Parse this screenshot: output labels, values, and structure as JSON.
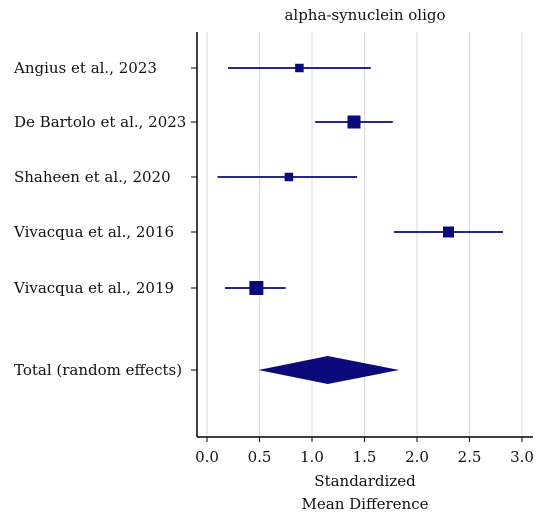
{
  "chart_data": {
    "type": "forest",
    "title": "alpha-synuclein oligo",
    "xlabel_lines": [
      "Standardized",
      "Mean Difference"
    ],
    "xlim": [
      -0.1,
      3.1
    ],
    "xticks": [
      0.0,
      0.5,
      1.0,
      1.5,
      2.0,
      2.5,
      3.0
    ],
    "xtick_labels": [
      "0.0",
      "0.5",
      "1.0",
      "1.5",
      "2.0",
      "2.5",
      "3.0"
    ],
    "vertical_grid": true,
    "color": "#0a0a7a",
    "studies": [
      {
        "label": "Angius et al., 2023",
        "smd": 0.88,
        "ci": [
          0.2,
          1.56
        ],
        "weight": 0.9
      },
      {
        "label": "De Bartolo et al., 2023",
        "smd": 1.4,
        "ci": [
          1.03,
          1.77
        ],
        "weight": 1.8
      },
      {
        "label": "Shaheen et al., 2020",
        "smd": 0.78,
        "ci": [
          0.1,
          1.43
        ],
        "weight": 0.9
      },
      {
        "label": "Vivacqua et al., 2016",
        "smd": 2.3,
        "ci": [
          1.78,
          2.82
        ],
        "weight": 1.4
      },
      {
        "label": "Vivacqua et al., 2019",
        "smd": 0.47,
        "ci": [
          0.17,
          0.75
        ],
        "weight": 2.0
      }
    ],
    "total": {
      "label": "Total (random effects)",
      "smd": 1.15,
      "ci": [
        0.49,
        1.83
      ]
    }
  }
}
